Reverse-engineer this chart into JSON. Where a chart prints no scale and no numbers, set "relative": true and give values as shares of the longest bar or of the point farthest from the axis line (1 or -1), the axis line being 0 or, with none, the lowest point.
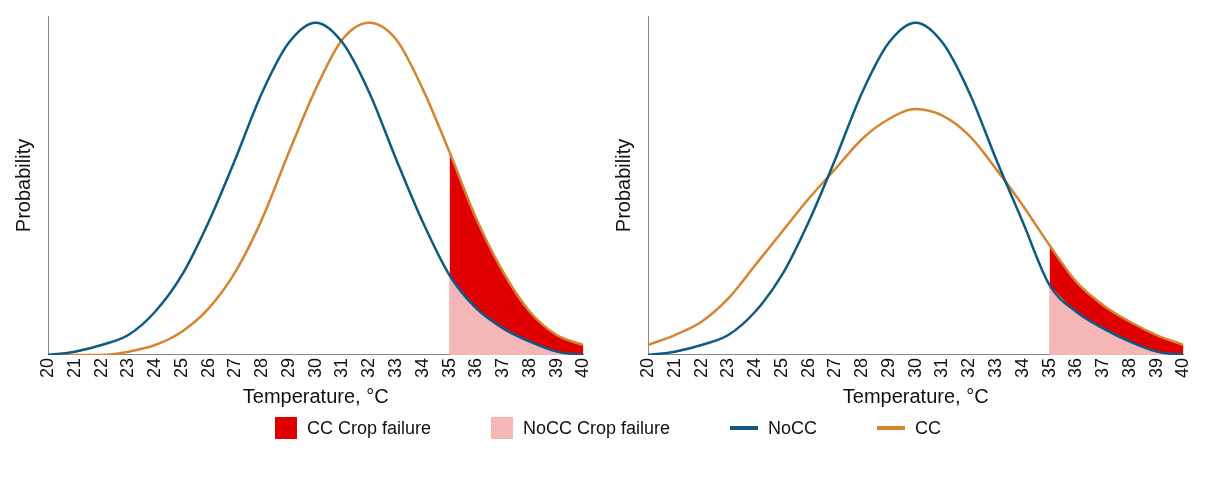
{
  "chart_data": [
    {
      "type": "line",
      "xlabel": "Temperature, °C",
      "ylabel": "Probability",
      "relative": true,
      "xlim": [
        20,
        40
      ],
      "xticks": [
        20,
        21,
        22,
        23,
        24,
        25,
        26,
        27,
        28,
        29,
        30,
        31,
        32,
        33,
        34,
        35,
        36,
        37,
        38,
        39,
        40
      ],
      "grid": false,
      "legend": "bottom",
      "marker": "none",
      "x": [
        20,
        21,
        22,
        23,
        24,
        25,
        26,
        27,
        28,
        29,
        30,
        31,
        32,
        33,
        34,
        35,
        36,
        37,
        38,
        39,
        40
      ],
      "series": [
        {
          "name": "CC Crop failure",
          "type": "area",
          "color": "#e00000",
          "x": [
            35,
            36,
            37,
            38,
            39,
            40
          ],
          "values": [
            0.61,
            0.41,
            0.25,
            0.13,
            0.06,
            0.03
          ]
        },
        {
          "name": "NoCC Crop failure",
          "type": "area",
          "color": "#f4b6b6",
          "x": [
            35,
            36,
            37,
            38,
            39,
            40
          ],
          "values": [
            0.24,
            0.14,
            0.08,
            0.04,
            0.01,
            0.0
          ]
        },
        {
          "name": "NoCC",
          "type": "line",
          "color": "#0e5a87",
          "values": [
            0.0,
            0.01,
            0.03,
            0.06,
            0.13,
            0.24,
            0.4,
            0.59,
            0.79,
            0.94,
            1.0,
            0.94,
            0.79,
            0.59,
            0.4,
            0.24,
            0.14,
            0.08,
            0.04,
            0.01,
            0.0
          ]
        },
        {
          "name": "CC",
          "type": "line",
          "color": "#d8832f",
          "values": [
            0.0,
            0.0,
            0.0,
            0.01,
            0.03,
            0.07,
            0.14,
            0.25,
            0.41,
            0.61,
            0.8,
            0.95,
            1.0,
            0.95,
            0.8,
            0.61,
            0.41,
            0.25,
            0.13,
            0.06,
            0.03
          ]
        }
      ]
    },
    {
      "type": "line",
      "xlabel": "Temperature, °C",
      "ylabel": "Probability",
      "relative": true,
      "xlim": [
        20,
        40
      ],
      "xticks": [
        20,
        21,
        22,
        23,
        24,
        25,
        26,
        27,
        28,
        29,
        30,
        31,
        32,
        33,
        34,
        35,
        36,
        37,
        38,
        39,
        40
      ],
      "grid": false,
      "marker": "none",
      "x": [
        20,
        21,
        22,
        23,
        24,
        25,
        26,
        27,
        28,
        29,
        30,
        31,
        32,
        33,
        34,
        35,
        36,
        37,
        38,
        39,
        40
      ],
      "series": [
        {
          "type": "area",
          "color": "#e00000",
          "x": [
            35,
            36,
            37,
            38,
            39,
            40
          ],
          "values": [
            0.33,
            0.22,
            0.15,
            0.1,
            0.06,
            0.03
          ]
        },
        {
          "type": "area",
          "color": "#f4b6b6",
          "x": [
            35,
            36,
            37,
            38,
            39,
            40
          ],
          "values": [
            0.21,
            0.13,
            0.08,
            0.04,
            0.01,
            0.0
          ]
        },
        {
          "type": "line",
          "color": "#0e5a87",
          "values": [
            0.0,
            0.01,
            0.03,
            0.06,
            0.13,
            0.24,
            0.4,
            0.59,
            0.79,
            0.94,
            1.0,
            0.94,
            0.79,
            0.59,
            0.4,
            0.21,
            0.13,
            0.08,
            0.04,
            0.01,
            0.0
          ]
        },
        {
          "type": "line",
          "color": "#d8832f",
          "values": [
            0.03,
            0.06,
            0.1,
            0.17,
            0.27,
            0.37,
            0.47,
            0.56,
            0.65,
            0.71,
            0.74,
            0.72,
            0.66,
            0.56,
            0.45,
            0.33,
            0.22,
            0.15,
            0.1,
            0.06,
            0.03
          ]
        }
      ]
    }
  ]
}
